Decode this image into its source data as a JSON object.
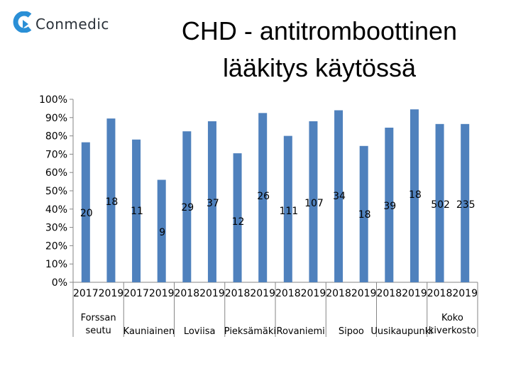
{
  "logo": {
    "text": "Conmedic",
    "icon": "conmedic-c-icon",
    "color": "#2a8fd6"
  },
  "chart_data": {
    "type": "bar",
    "title": "CHD - antitromboottinen lääkitys käytössä",
    "title_lines": [
      "CHD - antitromboottinen",
      "lääkitys käytössä"
    ],
    "ylim": [
      0,
      100
    ],
    "y_ticks": [
      "0%",
      "10%",
      "20%",
      "30%",
      "40%",
      "50%",
      "60%",
      "70%",
      "80%",
      "90%",
      "100%"
    ],
    "bar_color": "#4f81bd",
    "grid": false,
    "categories": [
      "2017",
      "2019",
      "2017",
      "2019",
      "2018",
      "2019",
      "2018",
      "2019",
      "2018",
      "2019",
      "2018",
      "2019",
      "2018",
      "2019",
      "2018",
      "2019"
    ],
    "groups": [
      {
        "name": "Forssan seutu",
        "name_lines": [
          "Forssan",
          "seutu"
        ]
      },
      {
        "name": "Kauniainen",
        "name_lines": [
          "Kauniainen"
        ]
      },
      {
        "name": "Loviisa",
        "name_lines": [
          "Loviisa"
        ]
      },
      {
        "name": "Pieksämäki",
        "name_lines": [
          "Pieksämäki"
        ]
      },
      {
        "name": "Rovaniemi",
        "name_lines": [
          "Rovaniemi"
        ]
      },
      {
        "name": "Sipoo",
        "name_lines": [
          "Sipoo"
        ]
      },
      {
        "name": "Uusikaupunki",
        "name_lines": [
          "Uusikaupunki"
        ]
      },
      {
        "name": "Koko kiverkosto",
        "name_lines": [
          "Koko",
          "kiverkosto"
        ]
      }
    ],
    "series": [
      {
        "values": [
          76.5,
          89.5,
          78,
          56,
          82.5,
          88,
          70.5,
          92.5,
          80,
          88,
          94,
          74.5,
          84.5,
          94.5,
          86.5,
          86.5
        ],
        "data_labels": [
          "20",
          "18",
          "11",
          "9",
          "29",
          "37",
          "12",
          "26",
          "111",
          "107",
          "34",
          "18",
          "39",
          "18",
          "502",
          "235"
        ]
      }
    ]
  }
}
